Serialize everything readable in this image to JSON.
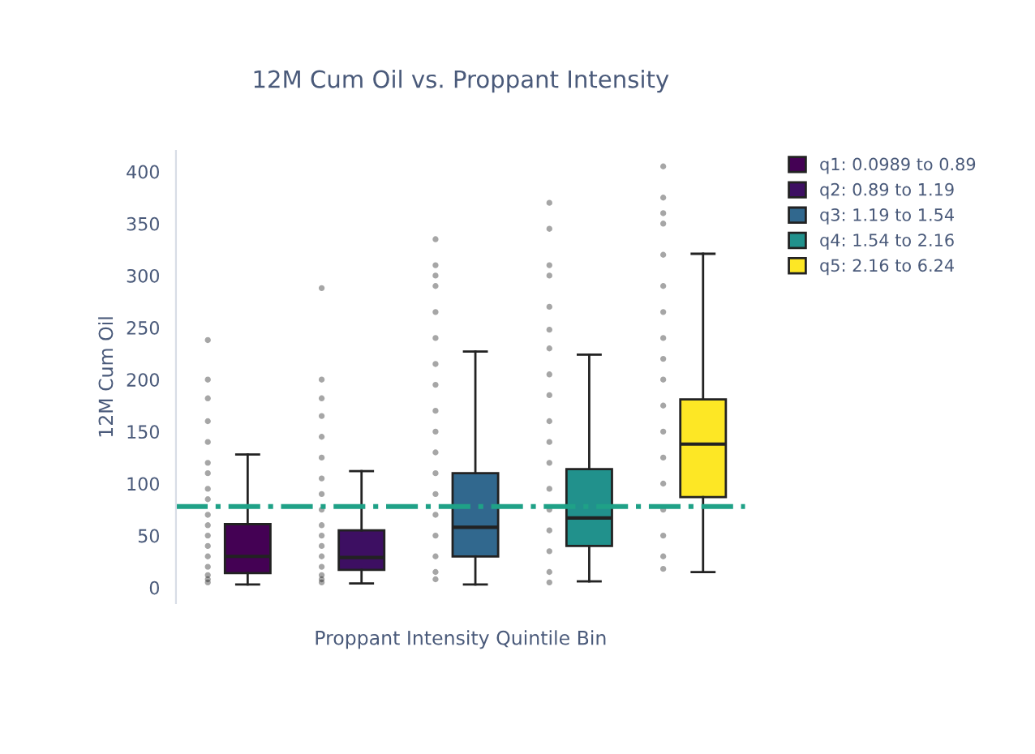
{
  "chart_data": {
    "type": "box",
    "title": "12M Cum Oil vs. Proppant Intensity",
    "xlabel": "Proppant Intensity Quintile Bin",
    "ylabel": "12M Cum Oil",
    "categories": [
      null,
      null,
      null,
      null,
      null
    ],
    "ylim": [
      -15,
      420
    ],
    "yticks": [
      0,
      50,
      100,
      150,
      200,
      250,
      300,
      350,
      400
    ],
    "tick_labels": "y",
    "grid": false,
    "legend": "top right",
    "ref_lines": [
      {
        "axis": "y",
        "value": 78,
        "color": "#1fa187",
        "line_style": "dashdot"
      }
    ],
    "series": [
      {
        "name": "q1: 0.0989 to 0.89",
        "color": "#440154",
        "boxes": [
          {
            "low": 3,
            "q1": 14,
            "median": 30,
            "q3": 61,
            "high": 128
          },
          null,
          null,
          null,
          null
        ]
      },
      {
        "name": "q2: 0.89 to 1.19",
        "color": "#3d0f62",
        "boxes": [
          null,
          {
            "low": 4,
            "q1": 17,
            "median": 29,
            "q3": 55,
            "high": 112
          },
          null,
          null,
          null
        ]
      },
      {
        "name": "q3: 1.19 to 1.54",
        "color": "#31688e",
        "boxes": [
          null,
          null,
          {
            "low": 3,
            "q1": 30,
            "median": 58,
            "q3": 110,
            "high": 227
          },
          null,
          null
        ]
      },
      {
        "name": "q4: 1.54 to 2.16",
        "color": "#21918c",
        "boxes": [
          null,
          null,
          null,
          {
            "low": 6,
            "q1": 40,
            "median": 67,
            "q3": 114,
            "high": 224
          },
          null
        ]
      },
      {
        "name": "q5: 2.16 to 6.24",
        "color": "#fde725",
        "boxes": [
          null,
          null,
          null,
          null,
          {
            "low": 15,
            "q1": 87,
            "median": 138,
            "q3": 181,
            "high": 321
          }
        ]
      },
      {
        "type": "scatter",
        "color": "#000000",
        "marker": "circle",
        "values": [
          238,
          288,
          335,
          370,
          405
        ]
      },
      {
        "type": "scatter",
        "color": "#000000",
        "marker": "circle",
        "values": [
          200,
          200,
          310,
          345,
          375
        ]
      },
      {
        "type": "scatter",
        "color": "#000000",
        "marker": "circle",
        "values": [
          182,
          182,
          300,
          310,
          360
        ]
      },
      {
        "type": "scatter",
        "color": "#000000",
        "marker": "circle",
        "values": [
          160,
          165,
          290,
          300,
          350
        ]
      },
      {
        "type": "scatter",
        "color": "#000000",
        "marker": "circle",
        "values": [
          140,
          145,
          265,
          270,
          320
        ]
      },
      {
        "type": "scatter",
        "color": "#000000",
        "marker": "circle",
        "values": [
          120,
          125,
          240,
          248,
          290
        ]
      },
      {
        "type": "scatter",
        "color": "#000000",
        "marker": "circle",
        "values": [
          110,
          105,
          215,
          230,
          265
        ]
      },
      {
        "type": "scatter",
        "color": "#000000",
        "marker": "circle",
        "values": [
          95,
          90,
          195,
          205,
          240
        ]
      },
      {
        "type": "scatter",
        "color": "#000000",
        "marker": "circle",
        "values": [
          85,
          75,
          170,
          185,
          220
        ]
      },
      {
        "type": "scatter",
        "color": "#000000",
        "marker": "circle",
        "values": [
          70,
          60,
          150,
          160,
          200
        ]
      },
      {
        "type": "scatter",
        "color": "#000000",
        "marker": "circle",
        "values": [
          60,
          50,
          130,
          140,
          175
        ]
      },
      {
        "type": "scatter",
        "color": "#000000",
        "marker": "circle",
        "values": [
          50,
          40,
          110,
          120,
          150
        ]
      },
      {
        "type": "scatter",
        "color": "#000000",
        "marker": "circle",
        "values": [
          40,
          30,
          90,
          95,
          125
        ]
      },
      {
        "type": "scatter",
        "color": "#000000",
        "marker": "circle",
        "values": [
          30,
          20,
          70,
          75,
          100
        ]
      },
      {
        "type": "scatter",
        "color": "#000000",
        "marker": "circle",
        "values": [
          20,
          12,
          50,
          55,
          75
        ]
      },
      {
        "type": "scatter",
        "color": "#000000",
        "marker": "circle",
        "values": [
          12,
          8,
          30,
          35,
          50
        ]
      },
      {
        "type": "scatter",
        "color": "#000000",
        "marker": "circle",
        "values": [
          8,
          5,
          15,
          15,
          30
        ]
      },
      {
        "type": "scatter",
        "color": "#000000",
        "marker": "circle",
        "values": [
          5,
          null,
          8,
          5,
          18
        ]
      }
    ]
  }
}
